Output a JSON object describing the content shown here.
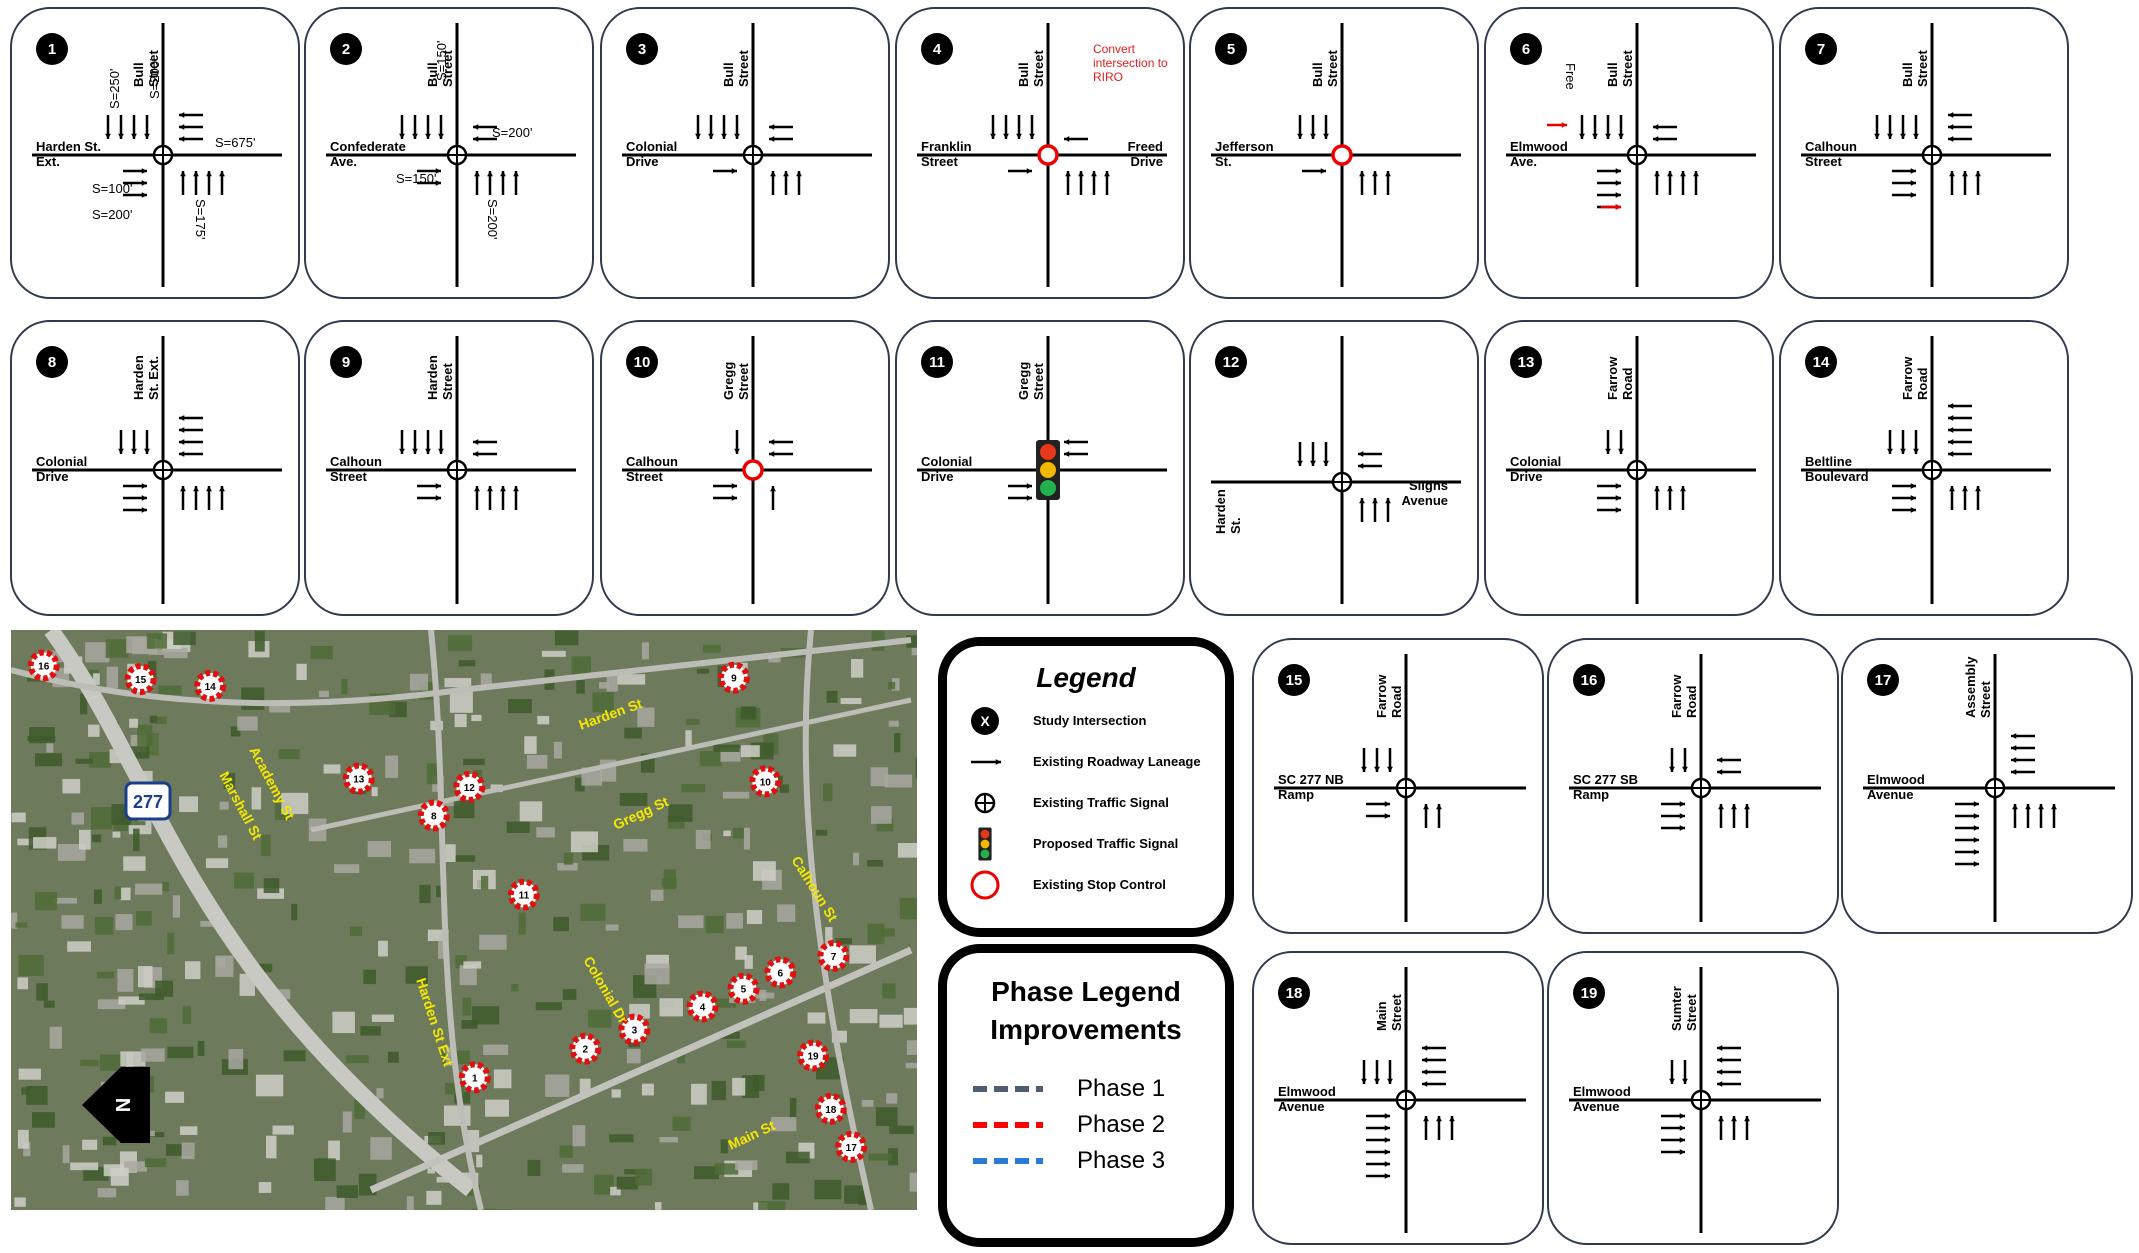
{
  "intersections": [
    {
      "number": "1",
      "ns_street": "Bull Street",
      "ew_street": "Harden St. Ext.",
      "notes": [
        {
          "text": "S=250'",
          "color": "#000000"
        },
        {
          "text": "S=200'",
          "color": "#000000"
        },
        {
          "text": "S=675'",
          "color": "#000000"
        },
        {
          "text": "S=100'",
          "color": "#000000"
        },
        {
          "text": "S=200'",
          "color": "#000000"
        },
        {
          "text": "S=175'",
          "color": "#000000"
        }
      ]
    },
    {
      "number": "2",
      "ns_street": "Bull Street",
      "ew_street": "Confederate Ave.",
      "notes": [
        {
          "text": "S=150'",
          "color": "#000000"
        },
        {
          "text": "S=200'",
          "color": "#000000"
        },
        {
          "text": "S=150'",
          "color": "#000000"
        },
        {
          "text": "S=200'",
          "color": "#000000"
        }
      ]
    },
    {
      "number": "3",
      "ns_street": "Bull Street",
      "ew_street": "Colonial Drive"
    },
    {
      "number": "4",
      "ns_street": "Bull Street",
      "ew_street": "Franklin Street",
      "ew_street_east": "Freed Drive",
      "notes": [
        {
          "text": "Convert intersection to RIRO",
          "color": "#e02020"
        }
      ]
    },
    {
      "number": "5",
      "ns_street": "Bull Street",
      "ew_street": "Jefferson St."
    },
    {
      "number": "6",
      "ns_street": "Bull Street",
      "ew_street": "Elmwood Ave.",
      "notes": [
        {
          "text": "Free",
          "color": "#000000"
        }
      ]
    },
    {
      "number": "7",
      "ns_street": "Bull Street",
      "ew_street": "Calhoun Street"
    },
    {
      "number": "8",
      "ns_street": "Harden St. Ext.",
      "ew_street": "Colonial Drive"
    },
    {
      "number": "9",
      "ns_street": "Harden Street",
      "ew_street": "Calhoun Street"
    },
    {
      "number": "10",
      "ns_street": "Gregg Street",
      "ew_street": "Calhoun Street"
    },
    {
      "number": "11",
      "ns_street": "Gregg Street",
      "ew_street": "Colonial Drive"
    },
    {
      "number": "12",
      "ns_street": "Harden St.",
      "ew_street": "Slighs Avenue"
    },
    {
      "number": "13",
      "ns_street": "Farrow Road",
      "ew_street": "Colonial Drive"
    },
    {
      "number": "14",
      "ns_street": "Farrow Road",
      "ew_street": "Beltline Boulevard"
    },
    {
      "number": "15",
      "ns_street": "Farrow Road",
      "ew_street": "SC 277 NB Ramp"
    },
    {
      "number": "16",
      "ns_street": "Farrow Road",
      "ew_street": "SC 277 SB Ramp"
    },
    {
      "number": "17",
      "ns_street": "Assembly Street",
      "ew_street": "Elmwood Avenue"
    },
    {
      "number": "18",
      "ns_street": "Main Street",
      "ew_street": "Elmwood Avenue"
    },
    {
      "number": "19",
      "ns_street": "Sumter Street",
      "ew_street": "Elmwood Avenue"
    }
  ],
  "legend": {
    "title": "Legend",
    "symbol_text": "X",
    "items": [
      "Study Intersection",
      "Existing Roadway Laneage",
      "Existing Traffic Signal",
      "Proposed Traffic Signal",
      "Existing Stop Control"
    ]
  },
  "phase_legend": {
    "title": "Phase Legend Improvements",
    "phases": [
      {
        "name": "Phase 1",
        "color": "#4f5d73"
      },
      {
        "name": "Phase 2",
        "color": "#ff0000"
      },
      {
        "name": "Phase 3",
        "color": "#2b7bd6"
      }
    ]
  },
  "map": {
    "markers": [
      "16",
      "15",
      "14",
      "9",
      "13",
      "12",
      "8",
      "10",
      "11",
      "7",
      "6",
      "5",
      "4",
      "3",
      "2",
      "19",
      "1",
      "18",
      "17"
    ],
    "street_labels": [
      "Harden St",
      "Academy St",
      "Marshall St",
      "Gregg St",
      "Calhoun St",
      "Colonial Dr",
      "Harden St Ext",
      "Main St"
    ],
    "route_shield": "277",
    "north_label": "N"
  }
}
